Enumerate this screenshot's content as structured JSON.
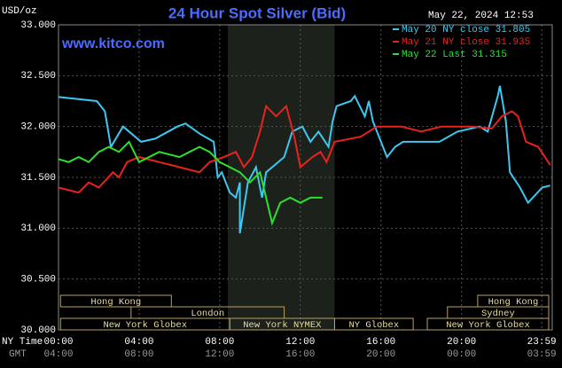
{
  "chart_data": {
    "type": "line",
    "title": "24 Hour Spot Silver (Bid)",
    "timestamp": "May 22, 2024 12:53",
    "website": "www.kitco.com",
    "y_unit": "USD/oz",
    "x_row_label": "NY Time",
    "x2_row_label": "GMT",
    "xlim": [
      0,
      24.5
    ],
    "xticks": [
      {
        "value": 0,
        "label": "00:00"
      },
      {
        "value": 4,
        "label": "04:00"
      },
      {
        "value": 8,
        "label": "08:00"
      },
      {
        "value": 12,
        "label": "12:00"
      },
      {
        "value": 16,
        "label": "16:00"
      },
      {
        "value": 20,
        "label": "20:00"
      },
      {
        "value": 23.98,
        "label": "23:59"
      }
    ],
    "x2_tick_labels": [
      "04:00",
      "08:00",
      "12:00",
      "16:00",
      "20:00",
      "00:00",
      "03:59"
    ],
    "ylim": [
      30,
      33
    ],
    "yticks": [
      {
        "value": 30,
        "label": "30.000"
      },
      {
        "value": 30.5,
        "label": "30.500"
      },
      {
        "value": 31,
        "label": "31.000"
      },
      {
        "value": 31.5,
        "label": "31.500"
      },
      {
        "value": 32,
        "label": "32.000"
      },
      {
        "value": 32.5,
        "label": "32.500"
      },
      {
        "value": 33,
        "label": "33.000"
      }
    ],
    "grid": true,
    "shaded_range": [
      8.4,
      13.7
    ],
    "series": [
      {
        "name": "May 20 NY close 31.805",
        "color": "#3cc8f0",
        "x": [
          0,
          1.9,
          2.3,
          2.6,
          3.2,
          4.1,
          4.8,
          5.9,
          6.3,
          7.0,
          7.7,
          7.9,
          8.1,
          8.5,
          8.8,
          9.0,
          9.0,
          9.4,
          9.8,
          10.1,
          10.3,
          11.2,
          11.6,
          12.1,
          12.5,
          12.9,
          13.4,
          13.6,
          13.8,
          14.5,
          14.7,
          15.2,
          15.4,
          15.6,
          16.3,
          16.7,
          17.1,
          18.9,
          19.8,
          20.9,
          21.3,
          21.8,
          21.9,
          22.2,
          22.4,
          22.9,
          23.3,
          24.0,
          24.4
        ],
        "values": [
          32.29,
          32.25,
          32.15,
          31.8,
          32.0,
          31.85,
          31.88,
          32.0,
          32.03,
          31.93,
          31.85,
          31.5,
          31.55,
          31.35,
          31.3,
          31.45,
          30.95,
          31.45,
          31.6,
          31.3,
          31.55,
          31.7,
          31.95,
          32.0,
          31.85,
          31.95,
          31.8,
          32.05,
          32.2,
          32.25,
          32.3,
          32.1,
          32.25,
          32.05,
          31.7,
          31.8,
          31.85,
          31.85,
          31.95,
          32.0,
          31.95,
          32.3,
          32.4,
          32.05,
          31.55,
          31.4,
          31.25,
          31.4,
          31.42
        ]
      },
      {
        "name": "May 21 NY close 31.935",
        "color": "#e8221c",
        "x": [
          0,
          1,
          1.5,
          2,
          2.7,
          3,
          3.4,
          4,
          5,
          6,
          7,
          7.5,
          8.2,
          8.8,
          9.2,
          9.6,
          10,
          10.3,
          10.8,
          11.3,
          11.7,
          12,
          12.6,
          13,
          13.3,
          13.7,
          15,
          15.8,
          17,
          18,
          19,
          20.5,
          21.5,
          22,
          22.5,
          22.8,
          23.2,
          23.8,
          24.4
        ],
        "values": [
          31.4,
          31.35,
          31.45,
          31.4,
          31.55,
          31.5,
          31.65,
          31.7,
          31.65,
          31.6,
          31.55,
          31.65,
          31.7,
          31.75,
          31.6,
          31.7,
          31.95,
          32.2,
          32.1,
          32.2,
          31.9,
          31.6,
          31.7,
          31.75,
          31.65,
          31.85,
          31.9,
          32.0,
          32.0,
          31.95,
          32.0,
          32.0,
          31.98,
          32.1,
          32.15,
          32.1,
          31.85,
          31.8,
          31.62
        ]
      },
      {
        "name": "May 22 Last 31.315",
        "color": "#2ee02e",
        "x": [
          0,
          0.5,
          1,
          1.5,
          2,
          2.5,
          3,
          3.5,
          4,
          5,
          6,
          6.5,
          7,
          7.5,
          8,
          8.5,
          9,
          9.5,
          10,
          10.3,
          10.6,
          11,
          11.5,
          12,
          12.5,
          13.1
        ],
        "values": [
          31.68,
          31.65,
          31.7,
          31.65,
          31.75,
          31.8,
          31.75,
          31.85,
          31.65,
          31.75,
          31.7,
          31.75,
          31.8,
          31.75,
          31.65,
          31.6,
          31.55,
          31.45,
          31.55,
          31.3,
          31.05,
          31.25,
          31.3,
          31.25,
          31.3,
          31.3
        ]
      }
    ],
    "sessions": [
      {
        "label": "Hong Kong",
        "range": [
          0.1,
          5.6
        ]
      },
      {
        "label": "London",
        "range": [
          3.6,
          11.2
        ]
      },
      {
        "label": "New York Globex",
        "range": [
          0.1,
          8.5
        ]
      },
      {
        "label": "New York NYMEX",
        "range": [
          8.5,
          13.7
        ]
      },
      {
        "label": "NY Globex",
        "range": [
          13.7,
          17.6
        ]
      },
      {
        "label": "Sydney",
        "range": [
          19.3,
          24.5
        ]
      },
      {
        "label": "Hong Kong",
        "range": [
          20.8,
          24.5
        ]
      },
      {
        "label": "New York Globex",
        "range": [
          18.3,
          24.5
        ]
      }
    ]
  }
}
